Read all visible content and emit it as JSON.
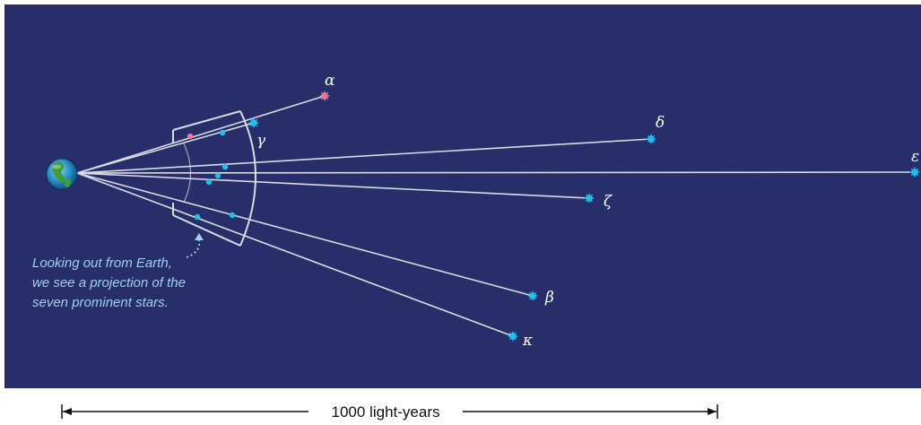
{
  "stars": [
    {
      "id": "alpha",
      "label": "α",
      "color": "#e8799f"
    },
    {
      "id": "gamma",
      "label": "γ",
      "color": "#1ec0f0"
    },
    {
      "id": "delta",
      "label": "δ",
      "color": "#1ec0f0"
    },
    {
      "id": "epsilon",
      "label": "ε",
      "color": "#1ec0f0"
    },
    {
      "id": "zeta",
      "label": "ζ",
      "color": "#1ec0f0"
    },
    {
      "id": "beta",
      "label": "β",
      "color": "#1ec0f0"
    },
    {
      "id": "kappa",
      "label": "κ",
      "color": "#1ec0f0"
    }
  ],
  "caption": {
    "lines": [
      "Looking out from Earth,",
      "we see a projection of the",
      "seven prominent stars."
    ]
  },
  "scale_bar": {
    "label": "1000 light-years"
  },
  "colors": {
    "background": "#272e69",
    "sight_lines": "#d9dbe6",
    "caption": "#9fd0ef",
    "blue_star": "#1ec0f0",
    "pink_star": "#e8799f"
  },
  "icons": {
    "earth": "earth-globe-icon"
  }
}
